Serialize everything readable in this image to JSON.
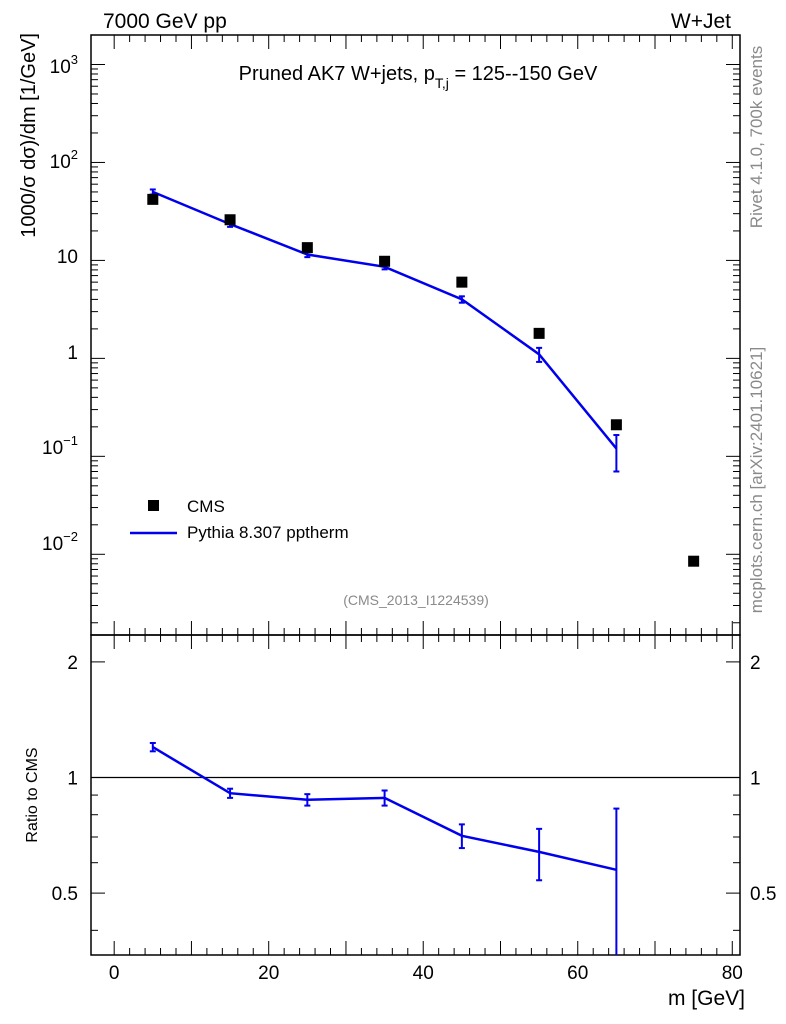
{
  "header": {
    "left": "7000 GeV pp",
    "right": "W+Jet"
  },
  "side_labels": {
    "rivet": "Rivet 4.1.0,  700k events",
    "mcplots": "mcplots.cern.ch [arXiv:2401.10621]"
  },
  "analysis_id": "(CMS_2013_I1224539)",
  "chart_data": [
    {
      "type": "scatter",
      "panel": "main",
      "title": "Pruned AK7 W+jets, p",
      "title_sub": "T,j",
      "title_rest": " = 125--150 GeV",
      "ylabel": "1000/σ   dσ)/dm [1/GeV]",
      "xlabel": "",
      "yscale": "log",
      "ylim": [
        0.0015,
        2000
      ],
      "xlim": [
        -3,
        81
      ],
      "y_tick_labels": [
        "10^3",
        "10^2",
        "10",
        "1",
        "10^-1",
        "10^-2"
      ],
      "legend": [
        "CMS",
        "Pythia 8.307 pptherm"
      ],
      "legend_position": "bottom-left",
      "series": [
        {
          "name": "CMS",
          "style": "marker",
          "x": [
            5,
            15,
            25,
            35,
            45,
            55,
            65,
            75
          ],
          "y": [
            42,
            26,
            13.5,
            9.8,
            6.0,
            1.8,
            0.21,
            0.0085
          ]
        },
        {
          "name": "Pythia 8.307 pptherm",
          "style": "line",
          "x": [
            5,
            15,
            25,
            35,
            45,
            55,
            65
          ],
          "y": [
            50,
            23.5,
            11.5,
            8.6,
            4.0,
            1.1,
            0.12
          ],
          "err_lo": [
            47,
            22,
            10.8,
            8.1,
            3.7,
            0.92,
            0.07
          ],
          "err_hi": [
            53,
            25,
            12.2,
            9.1,
            4.3,
            1.28,
            0.165
          ]
        }
      ]
    },
    {
      "type": "line",
      "panel": "ratio",
      "ylabel": "Ratio to CMS",
      "xlabel": "m [GeV]",
      "yscale": "log",
      "ylim": [
        0.345,
        2.35
      ],
      "xlim": [
        -3,
        81
      ],
      "y_ticks": [
        0.5,
        1,
        2
      ],
      "y_tick_labels": [
        "0.5",
        "1",
        "2"
      ],
      "x_ticks": [
        0,
        20,
        40,
        60,
        80
      ],
      "x_tick_labels": [
        "0",
        "20",
        "40",
        "60",
        "80"
      ],
      "reference_line": 1,
      "series": [
        {
          "name": "Pythia 8.307 pptherm / CMS",
          "x": [
            5,
            15,
            25,
            35,
            45,
            55,
            65
          ],
          "y": [
            1.2,
            0.91,
            0.875,
            0.885,
            0.705,
            0.64,
            0.575
          ],
          "err_lo": [
            1.17,
            0.885,
            0.845,
            0.845,
            0.655,
            0.54,
            0.32
          ],
          "err_hi": [
            1.23,
            0.935,
            0.905,
            0.925,
            0.755,
            0.735,
            0.83
          ]
        }
      ]
    }
  ]
}
